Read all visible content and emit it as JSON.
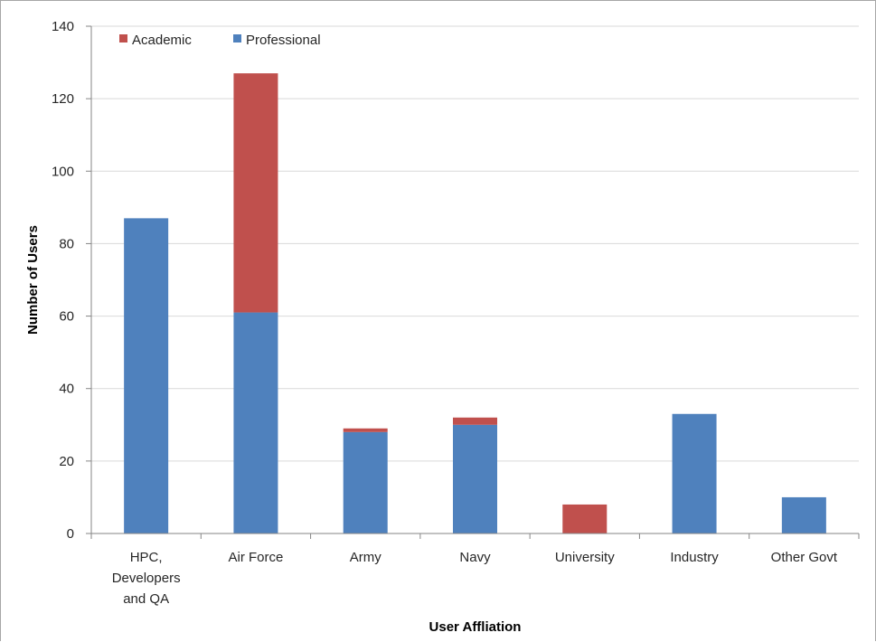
{
  "chart_data": {
    "type": "bar",
    "stacked": true,
    "categories": [
      [
        "HPC,",
        "Developers",
        "and QA"
      ],
      [
        "Air Force"
      ],
      [
        "Army"
      ],
      [
        "Navy"
      ],
      [
        "University"
      ],
      [
        "Industry"
      ],
      [
        "Other Govt"
      ]
    ],
    "series": [
      {
        "name": "Professional",
        "color": "#4f81bd",
        "values": [
          87,
          61,
          28,
          30,
          0,
          33,
          10
        ]
      },
      {
        "name": "Academic",
        "color": "#c0504d",
        "values": [
          0,
          66,
          1,
          2,
          8,
          0,
          0
        ]
      }
    ],
    "legend_order": [
      "Academic",
      "Professional"
    ],
    "legend_position": "top-left",
    "ylabel": "Number of Users",
    "xlabel": "User Affliation",
    "ylim": [
      0,
      140
    ],
    "yticks": [
      0,
      20,
      40,
      60,
      80,
      100,
      120,
      140
    ],
    "grid": true,
    "gridline_color": "#d9d9d9",
    "axis_color": "#868686"
  }
}
